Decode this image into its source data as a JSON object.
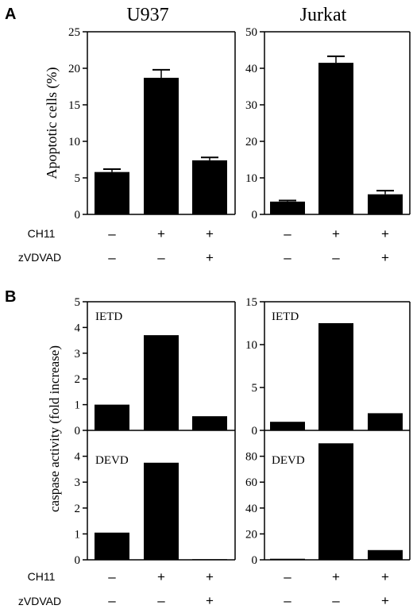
{
  "panel_labels": [
    "A",
    "B"
  ],
  "treatment_rows": {
    "labels": [
      "CH11",
      "zVDVAD"
    ],
    "ch11": [
      "–",
      "+",
      "+"
    ],
    "zvdvad": [
      "–",
      "–",
      "+"
    ]
  },
  "chart_data": [
    {
      "id": "A-U937",
      "type": "bar",
      "title": "U937",
      "ylabel": "Apoptotic cells (%)",
      "ylim": [
        0,
        25
      ],
      "yticks": [
        0,
        5,
        10,
        15,
        20,
        25
      ],
      "values": [
        5.8,
        18.7,
        7.4
      ],
      "errors": [
        0.4,
        1.1,
        0.4
      ]
    },
    {
      "id": "A-Jurkat",
      "type": "bar",
      "title": "Jurkat",
      "ylim": [
        0,
        50
      ],
      "yticks": [
        0,
        10,
        20,
        30,
        40,
        50
      ],
      "values": [
        3.5,
        41.5,
        5.5
      ],
      "errors": [
        0.3,
        1.8,
        1.0
      ]
    },
    {
      "id": "B-U937-IETD",
      "type": "bar",
      "label": "IETD",
      "ylabel": "caspase activity (fold increase)",
      "ylim": [
        0,
        5
      ],
      "yticks": [
        0,
        1,
        2,
        3,
        4,
        5
      ],
      "values": [
        1.0,
        3.7,
        0.55
      ]
    },
    {
      "id": "B-Jurkat-IETD",
      "type": "bar",
      "label": "IETD",
      "ylim": [
        0,
        15
      ],
      "yticks": [
        0,
        5,
        10,
        15
      ],
      "values": [
        1.0,
        12.5,
        2.0
      ]
    },
    {
      "id": "B-U937-DEVD",
      "type": "bar",
      "label": "DEVD",
      "ylim": [
        0,
        5
      ],
      "yticks": [
        0,
        1,
        2,
        3,
        4
      ],
      "values": [
        1.05,
        3.75,
        0.0
      ]
    },
    {
      "id": "B-Jurkat-DEVD",
      "type": "bar",
      "label": "DEVD",
      "ylim": [
        0,
        100
      ],
      "yticks": [
        0,
        20,
        40,
        60,
        80
      ],
      "values": [
        0.8,
        90.0,
        7.5
      ]
    }
  ]
}
